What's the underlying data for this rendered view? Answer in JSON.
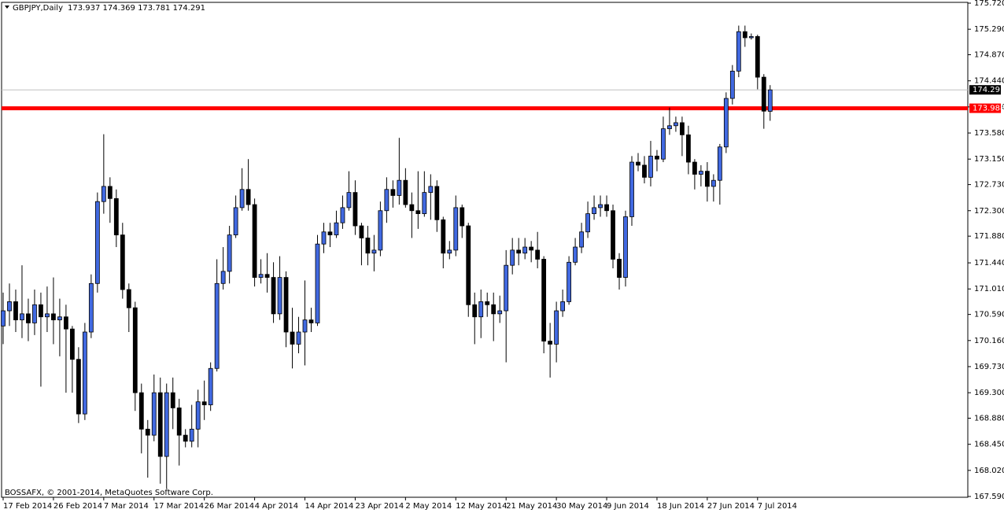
{
  "chart_data": {
    "type": "candlestick",
    "title": "GBPJPY,Daily",
    "header_values": "173.937 174.369 173.781 174.291",
    "footer": "BOSSAFX, © 2001-2014, MetaQuotes Software Corp.",
    "up_color": "#4169e1",
    "down_color": "#000000",
    "ylim": [
      167.59,
      175.72
    ],
    "yticks": [
      {
        "value": 175.72,
        "label": "175.720"
      },
      {
        "value": 175.29,
        "label": "175.290"
      },
      {
        "value": 174.87,
        "label": "174.870"
      },
      {
        "value": 174.44,
        "label": "174.440"
      },
      {
        "value": 174.01,
        "label": "174.010"
      },
      {
        "value": 173.58,
        "label": "173.580"
      },
      {
        "value": 173.15,
        "label": "173.150"
      },
      {
        "value": 172.73,
        "label": "172.730"
      },
      {
        "value": 172.3,
        "label": "172.300"
      },
      {
        "value": 171.88,
        "label": "171.880"
      },
      {
        "value": 171.44,
        "label": "171.440"
      },
      {
        "value": 171.01,
        "label": "171.010"
      },
      {
        "value": 170.59,
        "label": "170.590"
      },
      {
        "value": 170.16,
        "label": "170.160"
      },
      {
        "value": 169.73,
        "label": "169.730"
      },
      {
        "value": 169.3,
        "label": "169.300"
      },
      {
        "value": 168.88,
        "label": "168.880"
      },
      {
        "value": 168.45,
        "label": "168.450"
      },
      {
        "value": 168.02,
        "label": "168.020"
      },
      {
        "value": 167.59,
        "label": "167.590"
      }
    ],
    "hline": {
      "value": 173.988,
      "label": "173.988",
      "color": "#ff0000"
    },
    "last_price": {
      "value": 174.291,
      "label": "174.291",
      "color": "#c0c0c0"
    },
    "categories": [
      "17 Feb 2014",
      null,
      null,
      null,
      null,
      null,
      null,
      null,
      "26 Feb 2014",
      null,
      null,
      null,
      null,
      null,
      null,
      null,
      "7 Mar 2014",
      null,
      null,
      null,
      null,
      null,
      null,
      null,
      "17 Mar 2014",
      null,
      null,
      null,
      null,
      null,
      null,
      null,
      "26 Mar 2014",
      null,
      null,
      null,
      null,
      null,
      null,
      null,
      "4 Apr 2014",
      null,
      null,
      null,
      null,
      null,
      null,
      null,
      "14 Apr 2014",
      null,
      null,
      null,
      null,
      null,
      null,
      null,
      "23 Apr 2014",
      null,
      null,
      null,
      null,
      null,
      null,
      null,
      "2 May 2014",
      null,
      null,
      null,
      null,
      null,
      null,
      null,
      "12 May 2014",
      null,
      null,
      null,
      null,
      null,
      null,
      null,
      "21 May 2014",
      null,
      null,
      null,
      null,
      null,
      null,
      null,
      "30 May 2014",
      null,
      null,
      null,
      null,
      null,
      null,
      null,
      "9 Jun 2014",
      null,
      null,
      null,
      null,
      null,
      null,
      null,
      "18 Jun 2014",
      null,
      null,
      null,
      null,
      null,
      null,
      null,
      "27 Jun 2014",
      null,
      null,
      null,
      null,
      null,
      null,
      null,
      "7 Jul 2014",
      null,
      null
    ],
    "open": [
      170.4,
      170.65,
      170.8,
      170.5,
      170.6,
      170.45,
      170.75,
      170.55,
      170.6,
      170.5,
      170.55,
      170.35,
      169.85,
      168.95,
      170.3,
      171.1,
      172.45,
      172.7,
      172.5,
      171.9,
      171.0,
      170.7,
      169.3,
      168.7,
      168.6,
      169.3,
      168.25,
      169.3,
      169.05,
      168.6,
      168.5,
      168.7,
      169.15,
      169.1,
      169.7,
      171.1,
      171.3,
      171.9,
      172.35,
      172.65,
      172.4,
      171.2,
      171.25,
      171.2,
      170.6,
      171.2,
      170.3,
      170.1,
      170.3,
      170.5,
      170.45,
      171.75,
      171.95,
      171.9,
      172.1,
      172.35,
      172.6,
      172.05,
      171.85,
      171.6,
      171.65,
      172.3,
      172.65,
      172.55,
      172.8,
      172.4,
      172.3,
      172.25,
      172.6,
      172.7,
      172.15,
      171.6,
      171.65,
      172.35,
      172.05,
      170.75,
      170.55,
      170.8,
      170.75,
      170.6,
      170.65,
      171.4,
      171.65,
      171.6,
      171.7,
      171.65,
      171.5,
      170.15,
      170.1,
      170.65,
      170.8,
      171.45,
      171.7,
      171.95,
      172.25,
      172.35,
      172.4,
      172.3,
      171.5,
      171.2,
      172.2,
      173.1,
      173.05,
      172.85,
      173.2,
      173.15,
      173.65,
      173.7,
      173.75,
      173.55,
      173.1,
      172.9,
      172.95,
      172.7,
      172.8,
      173.35,
      174.15,
      174.6,
      175.25,
      175.15,
      175.17,
      174.5,
      173.937
    ],
    "high": [
      170.95,
      171.1,
      171.0,
      171.4,
      170.85,
      171.0,
      170.95,
      171.05,
      171.2,
      170.85,
      170.75,
      170.4,
      170.05,
      170.45,
      171.25,
      172.6,
      173.56,
      172.85,
      172.65,
      172.1,
      171.1,
      170.8,
      169.45,
      168.85,
      169.6,
      169.55,
      169.45,
      169.55,
      169.2,
      168.7,
      169.1,
      169.35,
      169.5,
      169.8,
      171.5,
      171.7,
      172.05,
      172.55,
      173.0,
      173.15,
      172.5,
      171.5,
      171.6,
      171.45,
      171.55,
      171.3,
      170.7,
      170.55,
      171.15,
      170.7,
      171.9,
      172.1,
      172.1,
      172.3,
      172.55,
      172.95,
      172.8,
      172.1,
      172.05,
      171.9,
      172.45,
      172.85,
      172.8,
      173.5,
      173.0,
      172.6,
      172.95,
      172.95,
      172.9,
      172.8,
      172.2,
      171.8,
      172.55,
      172.4,
      172.1,
      170.95,
      171.0,
      170.95,
      170.95,
      170.9,
      171.65,
      171.85,
      171.85,
      171.85,
      171.8,
      171.95,
      171.55,
      170.45,
      170.8,
      171.0,
      171.55,
      171.85,
      172.1,
      172.45,
      172.55,
      172.55,
      172.55,
      172.4,
      171.6,
      172.3,
      173.2,
      173.25,
      173.2,
      173.45,
      173.3,
      173.85,
      174.0,
      173.85,
      173.85,
      173.7,
      173.15,
      173.05,
      173.1,
      172.9,
      173.4,
      174.25,
      174.7,
      175.35,
      175.35,
      175.22,
      175.2,
      174.55,
      174.369
    ],
    "low": [
      170.1,
      170.4,
      170.3,
      170.2,
      170.15,
      170.25,
      169.4,
      170.3,
      170.1,
      169.9,
      169.3,
      169.3,
      168.8,
      168.85,
      170.2,
      170.95,
      172.25,
      172.1,
      171.7,
      170.85,
      170.3,
      169.0,
      168.3,
      167.9,
      168.5,
      167.8,
      167.72,
      168.7,
      168.1,
      168.4,
      168.4,
      168.4,
      168.85,
      169.0,
      169.65,
      171.0,
      171.1,
      171.85,
      172.3,
      172.3,
      171.05,
      171.1,
      170.95,
      170.45,
      170.5,
      170.05,
      169.7,
      169.95,
      169.75,
      170.3,
      170.4,
      171.6,
      171.7,
      171.85,
      172.0,
      172.3,
      171.9,
      171.4,
      171.4,
      171.3,
      171.55,
      172.1,
      172.35,
      172.4,
      172.35,
      171.85,
      172.0,
      172.2,
      172.15,
      171.95,
      171.35,
      171.5,
      171.55,
      171.85,
      170.55,
      170.1,
      170.2,
      170.55,
      170.15,
      170.45,
      169.8,
      171.25,
      171.4,
      171.5,
      171.45,
      171.35,
      169.95,
      169.55,
      169.8,
      170.55,
      170.75,
      171.4,
      171.6,
      171.85,
      172.15,
      172.2,
      172.2,
      171.35,
      171.0,
      171.05,
      172.05,
      172.95,
      172.75,
      172.7,
      172.95,
      173.1,
      173.55,
      173.6,
      173.2,
      172.9,
      172.65,
      172.7,
      172.45,
      172.45,
      172.4,
      173.25,
      174.05,
      174.5,
      175.0,
      175.12,
      174.3,
      173.65,
      173.781
    ],
    "close": [
      170.65,
      170.8,
      170.5,
      170.6,
      170.45,
      170.75,
      170.55,
      170.6,
      170.5,
      170.55,
      170.35,
      169.85,
      168.95,
      170.3,
      171.1,
      172.45,
      172.7,
      172.5,
      171.9,
      171.0,
      170.7,
      169.3,
      168.7,
      168.6,
      169.3,
      168.25,
      169.3,
      169.05,
      168.6,
      168.5,
      168.7,
      169.15,
      169.1,
      169.7,
      171.1,
      171.3,
      171.9,
      172.35,
      172.65,
      172.4,
      171.2,
      171.25,
      171.2,
      170.6,
      171.2,
      170.3,
      170.1,
      170.3,
      170.5,
      170.45,
      171.75,
      171.95,
      171.9,
      172.1,
      172.35,
      172.6,
      172.05,
      171.85,
      171.6,
      171.65,
      172.3,
      172.65,
      172.55,
      172.8,
      172.4,
      172.3,
      172.25,
      172.6,
      172.7,
      172.15,
      171.6,
      171.65,
      172.35,
      172.05,
      170.75,
      170.55,
      170.8,
      170.75,
      170.6,
      170.65,
      171.4,
      171.65,
      171.6,
      171.7,
      171.65,
      171.5,
      170.15,
      170.1,
      170.65,
      170.8,
      171.45,
      171.7,
      171.95,
      172.25,
      172.35,
      172.4,
      172.3,
      171.5,
      171.2,
      172.2,
      173.1,
      173.05,
      172.85,
      173.2,
      173.15,
      173.65,
      173.7,
      173.75,
      173.55,
      173.1,
      172.9,
      172.95,
      172.7,
      172.8,
      173.35,
      174.15,
      174.6,
      175.25,
      175.15,
      175.17,
      174.5,
      173.94,
      174.291
    ]
  }
}
